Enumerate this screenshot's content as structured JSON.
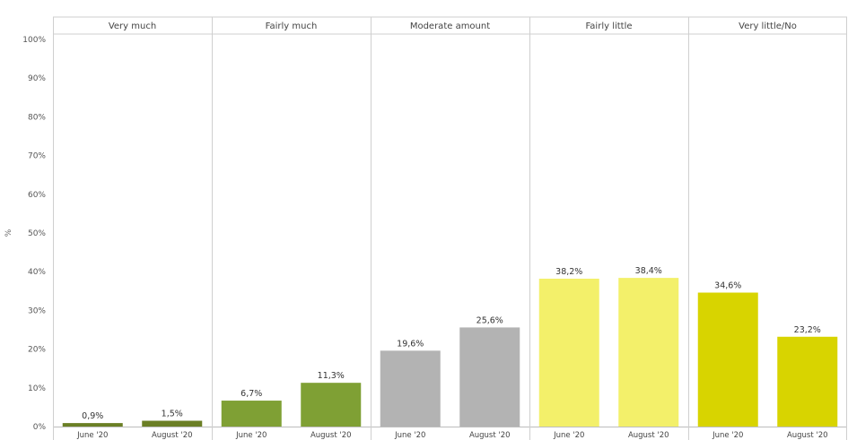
{
  "chart_data": {
    "type": "bar",
    "ylabel": "%",
    "ylim": [
      0,
      100
    ],
    "y_ticks": [
      "0%",
      "10%",
      "20%",
      "30%",
      "40%",
      "50%",
      "60%",
      "70%",
      "80%",
      "90%",
      "100%"
    ],
    "categories": [
      "June '20",
      "August '20"
    ],
    "panels": [
      {
        "name": "Very much",
        "color": "#6b7f25",
        "values": [
          0.9,
          1.5
        ],
        "labels": [
          "0,9%",
          "1,5%"
        ]
      },
      {
        "name": "Fairly much",
        "color": "#7fa034",
        "values": [
          6.7,
          11.3
        ],
        "labels": [
          "6,7%",
          "11,3%"
        ]
      },
      {
        "name": "Moderate amount",
        "color": "#b3b3b3",
        "values": [
          19.6,
          25.6
        ],
        "labels": [
          "19,6%",
          "25,6%"
        ]
      },
      {
        "name": "Fairly little",
        "color": "#f3f06a",
        "values": [
          38.2,
          38.4
        ],
        "labels": [
          "38,2%",
          "38,4%"
        ]
      },
      {
        "name": "Very little/No",
        "color": "#d8d400",
        "values": [
          34.6,
          23.2
        ],
        "labels": [
          "34,6%",
          "23,2%"
        ]
      }
    ],
    "grid": false,
    "legend": "none"
  }
}
